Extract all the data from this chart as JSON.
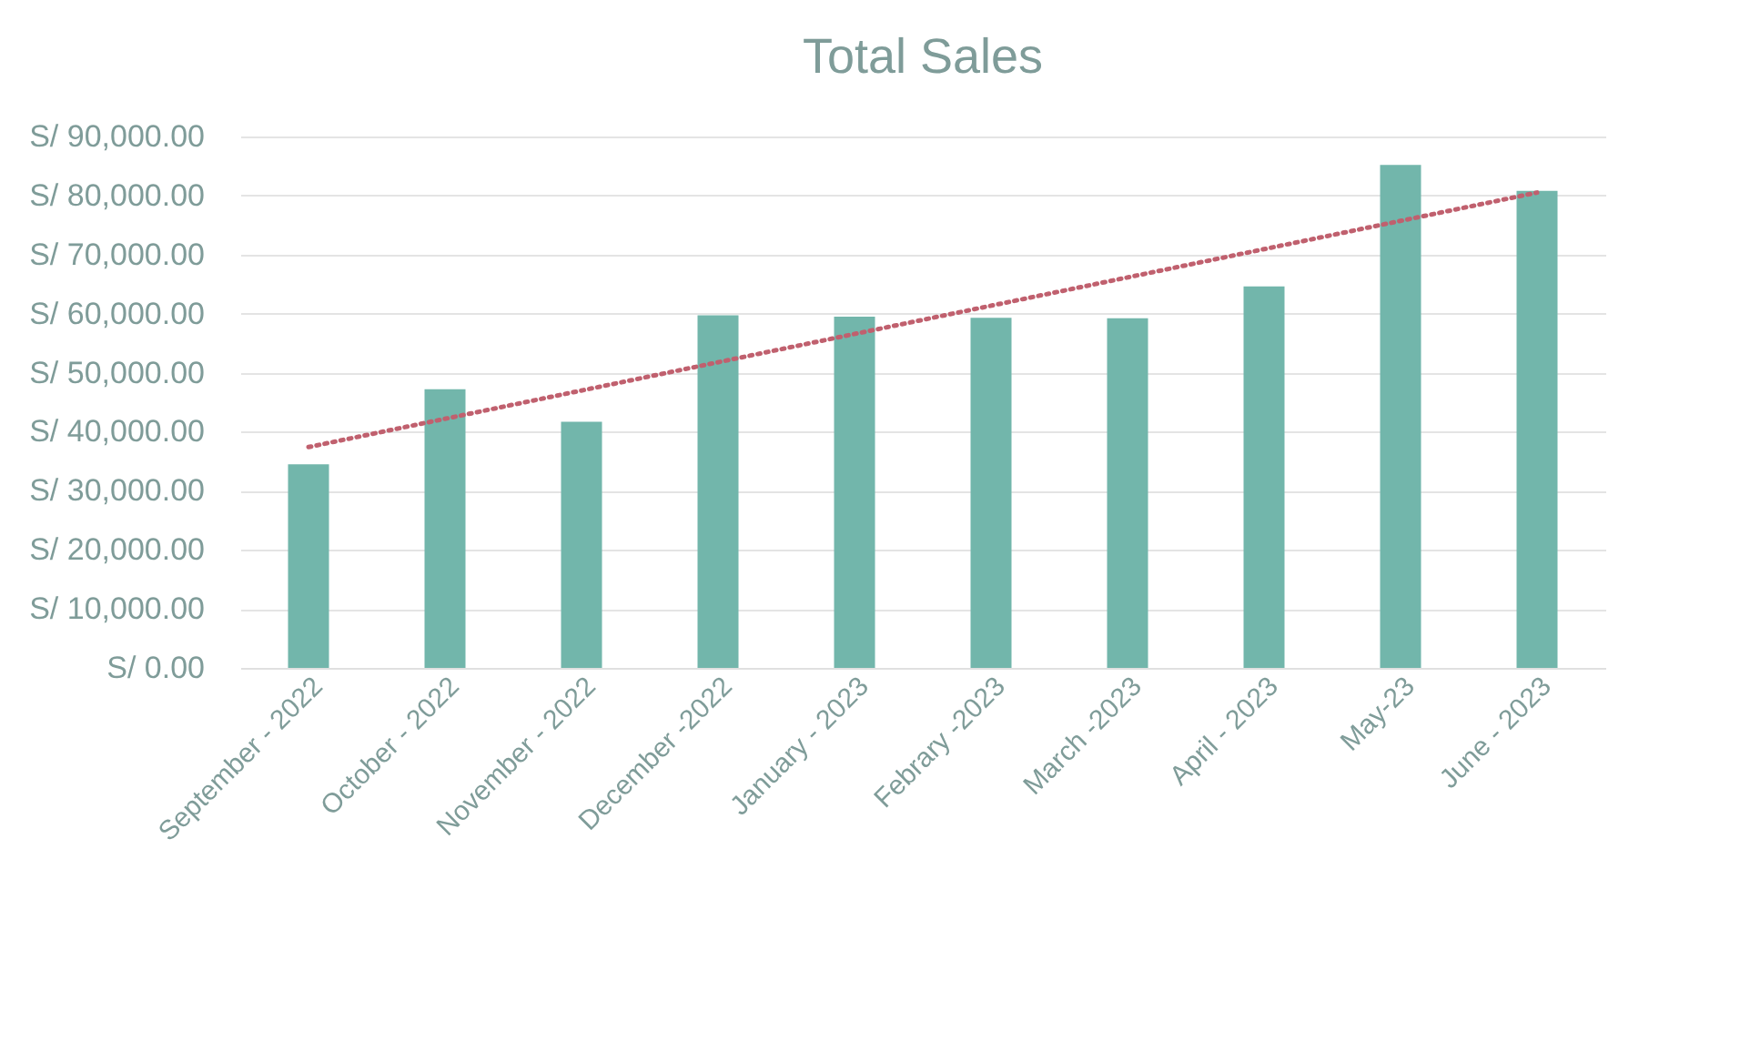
{
  "chart_data": {
    "type": "bar",
    "title": "Total Sales",
    "categories": [
      "September - 2022",
      "October - 2022",
      "November - 2022",
      "December -2022",
      "January - 2023",
      "Febrary -2023",
      "March -2023",
      "April - 2023",
      "May-23",
      "June - 2023"
    ],
    "series": [
      {
        "color": "#72b6ab",
        "values": [
          34500,
          47200,
          41700,
          59700,
          59500,
          59300,
          59200,
          64600,
          85200,
          80800
        ]
      },
      {
        "type": "line",
        "color": "#c0606e",
        "line_style": "dotted",
        "x": [
          "September - 2022",
          "June - 2023"
        ],
        "values": [
          37400,
          80500
        ]
      }
    ],
    "ylim": [
      0,
      90000
    ],
    "yticks": [
      {
        "value": 0,
        "label": "S/ 0.00"
      },
      {
        "value": 10000,
        "label": "S/ 10,000.00"
      },
      {
        "value": 20000,
        "label": "S/ 20,000.00"
      },
      {
        "value": 30000,
        "label": "S/ 30,000.00"
      },
      {
        "value": 40000,
        "label": "S/ 40,000.00"
      },
      {
        "value": 50000,
        "label": "S/ 50,000.00"
      },
      {
        "value": 60000,
        "label": "S/ 60,000.00"
      },
      {
        "value": 70000,
        "label": "S/ 70,000.00"
      },
      {
        "value": 80000,
        "label": "S/ 80,000.00"
      },
      {
        "value": 90000,
        "label": "S/ 90,000.00"
      }
    ],
    "grid": "y"
  }
}
